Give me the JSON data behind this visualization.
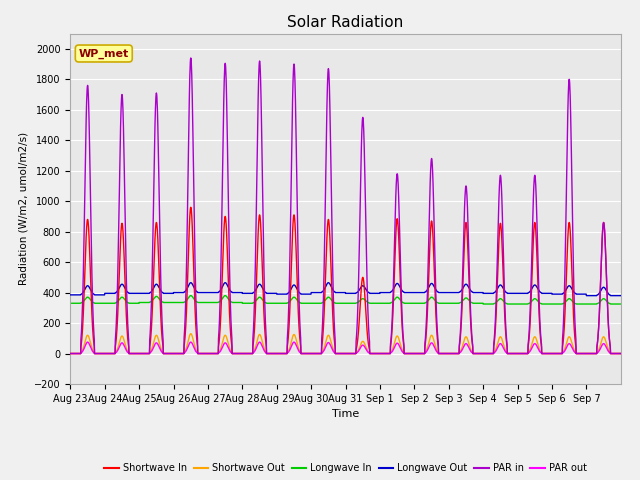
{
  "title": "Solar Radiation",
  "xlabel": "Time",
  "ylabel": "Radiation (W/m2, umol/m2/s)",
  "ylim": [
    -200,
    2100
  ],
  "yticks": [
    -200,
    0,
    200,
    400,
    600,
    800,
    1000,
    1200,
    1400,
    1600,
    1800,
    2000
  ],
  "background_color": "#f0f0f0",
  "plot_bg_color": "#e8e8e8",
  "annotation_text": "WP_met",
  "annotation_color": "#8b0000",
  "annotation_bg": "#ffff99",
  "annotation_edge": "#ccaa00",
  "num_days": 16,
  "day_labels": [
    "Aug 23",
    "Aug 24",
    "Aug 25",
    "Aug 26",
    "Aug 27",
    "Aug 28",
    "Aug 29",
    "Aug 30",
    "Aug 31",
    "Sep 1",
    "Sep 2",
    "Sep 3",
    "Sep 4",
    "Sep 5",
    "Sep 6",
    "Sep 7"
  ],
  "sw_in_peaks": [
    880,
    855,
    860,
    960,
    900,
    910,
    910,
    880,
    500,
    885,
    870,
    860,
    855,
    860,
    860,
    860
  ],
  "sw_out_peaks": [
    120,
    115,
    120,
    130,
    120,
    125,
    125,
    120,
    80,
    115,
    120,
    110,
    110,
    110,
    110,
    110
  ],
  "par_in_peaks": [
    1760,
    1700,
    1710,
    1940,
    1905,
    1920,
    1900,
    1870,
    1550,
    1180,
    1280,
    1100,
    1170,
    1170,
    1800,
    860
  ],
  "par_out_peaks": [
    75,
    70,
    70,
    75,
    70,
    75,
    75,
    72,
    55,
    68,
    70,
    65,
    65,
    65,
    65,
    65
  ],
  "lw_in_base": [
    330,
    330,
    335,
    335,
    335,
    330,
    330,
    330,
    330,
    330,
    330,
    330,
    325,
    325,
    325,
    325
  ],
  "lw_in_bump": [
    40,
    40,
    40,
    45,
    45,
    40,
    40,
    40,
    30,
    40,
    40,
    35,
    35,
    35,
    35,
    35
  ],
  "lw_out_base": [
    385,
    395,
    395,
    400,
    400,
    395,
    390,
    400,
    395,
    400,
    400,
    400,
    395,
    395,
    390,
    380
  ],
  "lw_out_bump": [
    60,
    60,
    60,
    65,
    65,
    60,
    60,
    65,
    50,
    60,
    60,
    55,
    55,
    55,
    55,
    55
  ],
  "colors": {
    "sw_in": "#ff0000",
    "sw_out": "#ffa500",
    "lw_in": "#00cc00",
    "lw_out": "#0000cc",
    "par_in": "#aa00cc",
    "par_out": "#ff00ff"
  },
  "legend_entries": [
    {
      "label": "Shortwave In",
      "color": "#ff0000"
    },
    {
      "label": "Shortwave Out",
      "color": "#ffa500"
    },
    {
      "label": "Longwave In",
      "color": "#00cc00"
    },
    {
      "label": "Longwave Out",
      "color": "#0000cc"
    },
    {
      "label": "PAR in",
      "color": "#aa00cc"
    },
    {
      "label": "PAR out",
      "color": "#ff00ff"
    }
  ]
}
